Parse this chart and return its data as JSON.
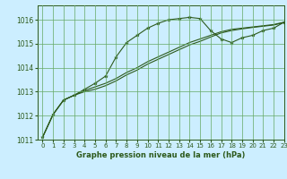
{
  "title": "Graphe pression niveau de la mer (hPa)",
  "xlim": [
    -0.5,
    23
  ],
  "ylim": [
    1011,
    1016.6
  ],
  "yticks": [
    1011,
    1012,
    1013,
    1014,
    1015,
    1016
  ],
  "xticks": [
    0,
    1,
    2,
    3,
    4,
    5,
    6,
    7,
    8,
    9,
    10,
    11,
    12,
    13,
    14,
    15,
    16,
    17,
    18,
    19,
    20,
    21,
    22,
    23
  ],
  "bg_color": "#cceeff",
  "grid_color": "#66aa66",
  "line_color": "#2d5a1b",
  "line1_x": [
    0,
    1,
    2,
    3,
    4,
    5,
    6,
    7,
    8,
    9,
    10,
    11,
    12,
    13,
    14,
    15,
    16,
    17,
    18,
    19,
    20,
    21,
    22,
    23
  ],
  "line1_y": [
    1011.1,
    1012.05,
    1012.65,
    1012.85,
    1013.1,
    1013.35,
    1013.65,
    1014.45,
    1015.05,
    1015.35,
    1015.65,
    1015.85,
    1016.0,
    1016.05,
    1016.1,
    1016.05,
    1015.55,
    1015.2,
    1015.05,
    1015.25,
    1015.35,
    1015.55,
    1015.65,
    1015.9
  ],
  "line2_x": [
    0,
    1,
    2,
    3,
    4,
    5,
    6,
    7,
    8,
    9,
    10,
    11,
    12,
    13,
    14,
    15,
    16,
    17,
    18,
    19,
    20,
    21,
    22,
    23
  ],
  "line2_y": [
    1011.1,
    1012.05,
    1012.65,
    1012.85,
    1013.05,
    1013.2,
    1013.35,
    1013.55,
    1013.8,
    1014.0,
    1014.25,
    1014.45,
    1014.65,
    1014.85,
    1015.05,
    1015.2,
    1015.35,
    1015.5,
    1015.6,
    1015.65,
    1015.7,
    1015.75,
    1015.8,
    1015.9
  ],
  "line3_x": [
    0,
    1,
    2,
    3,
    4,
    5,
    6,
    7,
    8,
    9,
    10,
    11,
    12,
    13,
    14,
    15,
    16,
    17,
    18,
    19,
    20,
    21,
    22,
    23
  ],
  "line3_y": [
    1011.1,
    1012.05,
    1012.65,
    1012.85,
    1013.0,
    1013.1,
    1013.25,
    1013.45,
    1013.7,
    1013.9,
    1014.15,
    1014.35,
    1014.55,
    1014.75,
    1014.95,
    1015.1,
    1015.28,
    1015.45,
    1015.55,
    1015.62,
    1015.68,
    1015.73,
    1015.78,
    1015.88
  ]
}
